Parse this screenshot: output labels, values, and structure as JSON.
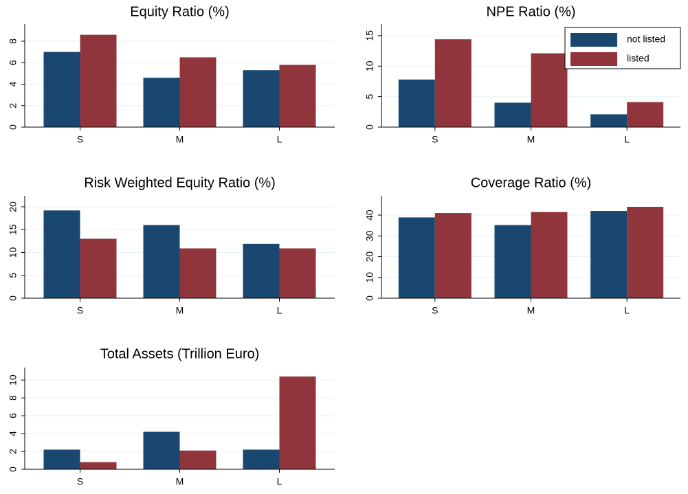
{
  "chart_data": [
    {
      "type": "bar",
      "title": "Equity Ratio (%)",
      "categories": [
        "S",
        "M",
        "L"
      ],
      "series": [
        {
          "color": "#1a476f",
          "values": [
            7.0,
            4.6,
            5.3
          ]
        },
        {
          "color": "#90353b",
          "values": [
            8.6,
            6.5,
            5.8
          ]
        }
      ],
      "ylim": [
        0,
        9.6
      ],
      "yticks": [
        0,
        2,
        4,
        6,
        8
      ],
      "grid": true
    },
    {
      "type": "bar",
      "title": "NPE Ratio (%)",
      "categories": [
        "S",
        "M",
        "L"
      ],
      "series": [
        {
          "name": "not listed",
          "color": "#1a476f",
          "values": [
            7.8,
            4.0,
            2.1
          ]
        },
        {
          "name": "listed",
          "color": "#90353b",
          "values": [
            14.4,
            12.1,
            4.1
          ]
        }
      ],
      "ylim": [
        0,
        16.9
      ],
      "yticks": [
        0,
        5,
        10,
        15
      ],
      "grid": true,
      "legend": "upper right"
    },
    {
      "type": "bar",
      "title": "Risk Weighted Equity Ratio (%)",
      "categories": [
        "S",
        "M",
        "L"
      ],
      "series": [
        {
          "color": "#1a476f",
          "values": [
            19.2,
            16.0,
            11.9
          ]
        },
        {
          "color": "#90353b",
          "values": [
            13.0,
            10.9,
            10.9
          ]
        }
      ],
      "ylim": [
        0,
        22.4
      ],
      "yticks": [
        0,
        5,
        10,
        15,
        20
      ],
      "grid": true
    },
    {
      "type": "bar",
      "title": "Coverage Ratio (%)",
      "categories": [
        "S",
        "M",
        "L"
      ],
      "series": [
        {
          "color": "#1a476f",
          "values": [
            38.9,
            35.2,
            42.0
          ]
        },
        {
          "color": "#90353b",
          "values": [
            41.0,
            41.5,
            44.0
          ]
        }
      ],
      "ylim": [
        0,
        49.3
      ],
      "yticks": [
        0,
        10,
        20,
        30,
        40
      ],
      "grid": true
    },
    {
      "type": "bar",
      "title": "Total Assets (Trillion Euro)",
      "categories": [
        "S",
        "M",
        "L"
      ],
      "series": [
        {
          "color": "#1a476f",
          "values": [
            2.2,
            4.2,
            2.2
          ]
        },
        {
          "color": "#90353b",
          "values": [
            0.8,
            2.1,
            10.4
          ]
        }
      ],
      "ylim": [
        0,
        11.4
      ],
      "yticks": [
        0,
        2,
        4,
        6,
        8,
        10
      ],
      "grid": true
    }
  ]
}
